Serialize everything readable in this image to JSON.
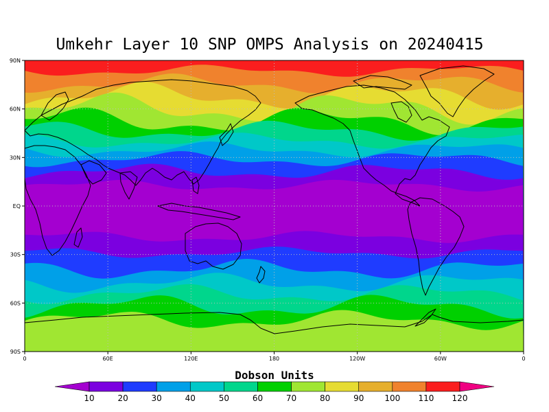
{
  "title": "Umkehr Layer 10 SNP OMPS Analysis on 20240415",
  "colorbar": {
    "title": "Dobson Units",
    "labels": [
      "10",
      "20",
      "30",
      "40",
      "50",
      "60",
      "70",
      "80",
      "90",
      "100",
      "110",
      "120"
    ],
    "colors": [
      "#a400d0",
      "#7b00e0",
      "#1f3cff",
      "#00a0e8",
      "#00c8c8",
      "#00d68c",
      "#00d000",
      "#a0e632",
      "#e6dc32",
      "#e6af2d",
      "#f0822d",
      "#fa1e1e",
      "#f00082"
    ]
  },
  "map": {
    "lat_ticks": [
      "90N",
      "60N",
      "30N",
      "EQ",
      "30S",
      "60S",
      "90S"
    ],
    "lon_ticks": [
      "0",
      "60E",
      "120E",
      "180",
      "120W",
      "60W",
      "0"
    ],
    "grid": "dotted at 30 degree intervals",
    "projection": "cylindrical equidistant, 0 to 360 longitude",
    "field": "zonal ozone bands, Dobson Units",
    "band_order_north_to_south": [
      "120",
      "110",
      "100",
      "90",
      "80",
      "70",
      "60",
      "50",
      "40",
      "30",
      "20",
      "10",
      "20",
      "30",
      "40",
      "50",
      "60",
      "70",
      "80"
    ],
    "band_colors_north_to_south": [
      "#fa1e1e",
      "#f0822d",
      "#e6af2d",
      "#e6dc32",
      "#a0e632",
      "#00d000",
      "#00d68c",
      "#00c8c8",
      "#00a0e8",
      "#1f3cff",
      "#7b00e0",
      "#a400d0",
      "#7b00e0",
      "#1f3cff",
      "#00a0e8",
      "#00c8c8",
      "#00d68c",
      "#00d000",
      "#a0e632"
    ]
  }
}
